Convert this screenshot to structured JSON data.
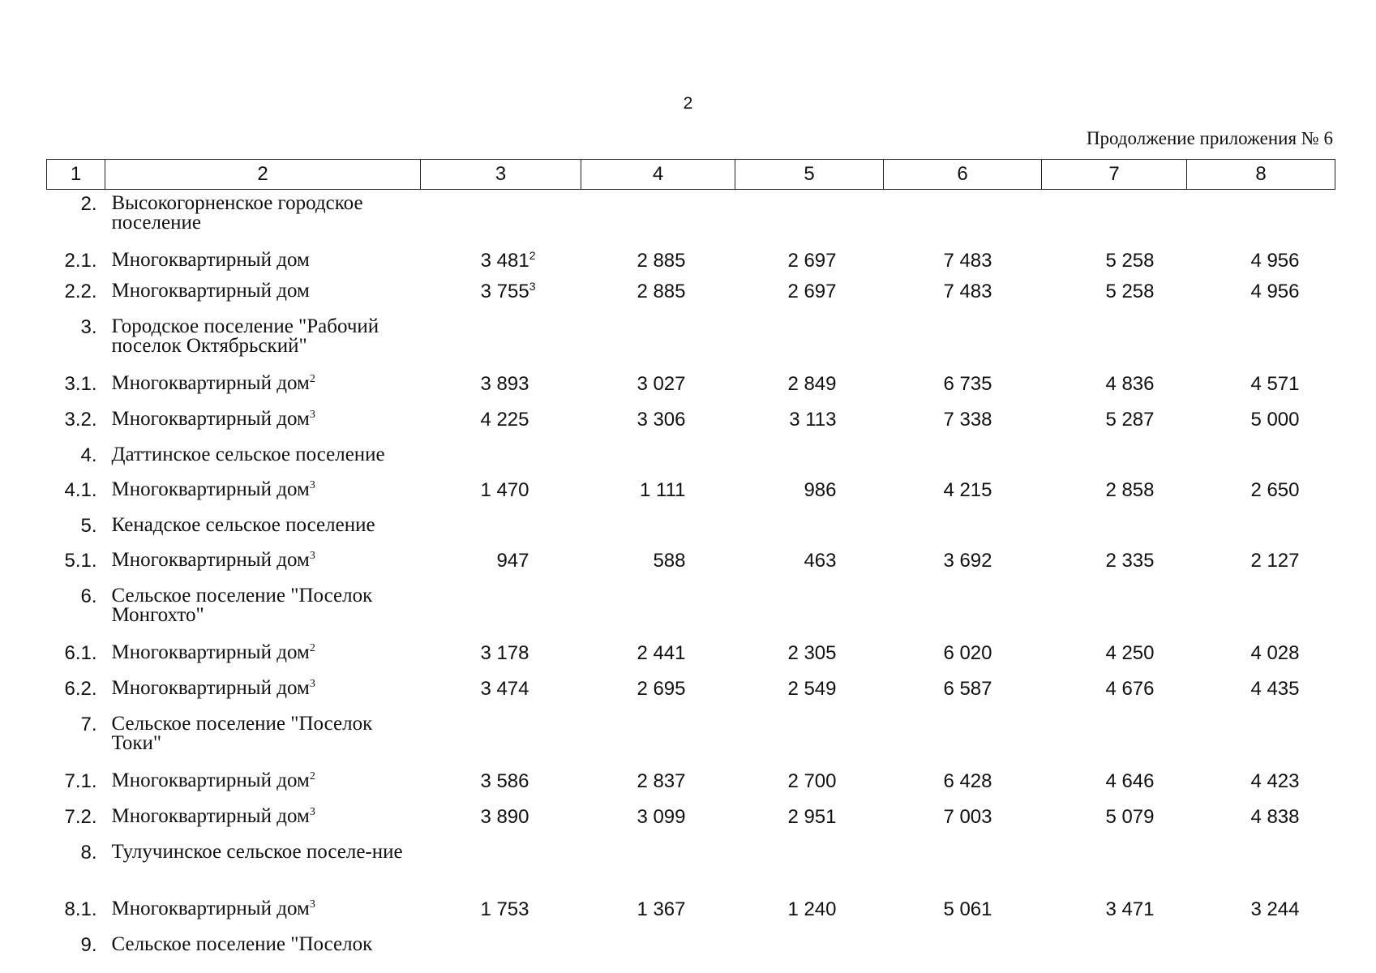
{
  "page_number": "2",
  "continuation_label": "Продолжение приложения № 6",
  "headers": [
    "1",
    "2",
    "3",
    "4",
    "5",
    "6",
    "7",
    "8"
  ],
  "rows": [
    {
      "num": "2.",
      "name": "Высокогорненское городское поселение",
      "name_sup": "",
      "values": [
        "",
        "",
        "",
        "",
        "",
        ""
      ],
      "v_sup": ""
    },
    {
      "num": "2.1.",
      "name": "Многоквартирный дом",
      "name_sup": "",
      "values": [
        "3 481",
        "2 885",
        "2 697",
        "7 483",
        "5 258",
        "4 956"
      ],
      "v_sup": "2"
    },
    {
      "num": "2.2.",
      "name": "Многоквартирный дом",
      "name_sup": "",
      "values": [
        "3 755",
        "2 885",
        "2 697",
        "7 483",
        "5 258",
        "4 956"
      ],
      "v_sup": "3"
    },
    {
      "num": "3.",
      "name": "Городское поселение \"Рабочий поселок Октябрьский\"",
      "name_sup": "",
      "values": [
        "",
        "",
        "",
        "",
        "",
        ""
      ],
      "v_sup": ""
    },
    {
      "num": "3.1.",
      "name": "Многоквартирный дом",
      "name_sup": "2",
      "values": [
        "3 893",
        "3 027",
        "2 849",
        "6 735",
        "4 836",
        "4 571"
      ],
      "v_sup": ""
    },
    {
      "num": "3.2.",
      "name": "Многоквартирный дом",
      "name_sup": "3",
      "values": [
        "4 225",
        "3 306",
        "3 113",
        "7 338",
        "5 287",
        "5 000"
      ],
      "v_sup": ""
    },
    {
      "num": "4.",
      "name": "Даттинское сельское поселение",
      "name_sup": "",
      "values": [
        "",
        "",
        "",
        "",
        "",
        ""
      ],
      "v_sup": ""
    },
    {
      "num": "4.1.",
      "name": "Многоквартирный дом",
      "name_sup": "3",
      "values": [
        "1 470",
        "1 111",
        "986",
        "4 215",
        "2 858",
        "2 650"
      ],
      "v_sup": ""
    },
    {
      "num": "5.",
      "name": "Кенадское сельское поселение",
      "name_sup": "",
      "values": [
        "",
        "",
        "",
        "",
        "",
        ""
      ],
      "v_sup": ""
    },
    {
      "num": "5.1.",
      "name": "Многоквартирный дом",
      "name_sup": "3",
      "values": [
        "947",
        "588",
        "463",
        "3 692",
        "2 335",
        "2 127"
      ],
      "v_sup": ""
    },
    {
      "num": "6.",
      "name": "Сельское поселение \"Поселок Монгохто\"",
      "name_sup": "",
      "values": [
        "",
        "",
        "",
        "",
        "",
        ""
      ],
      "v_sup": ""
    },
    {
      "num": "6.1.",
      "name": "Многоквартирный дом",
      "name_sup": "2",
      "values": [
        "3 178",
        "2 441",
        "2 305",
        "6 020",
        "4 250",
        "4 028"
      ],
      "v_sup": ""
    },
    {
      "num": "6.2.",
      "name": "Многоквартирный дом",
      "name_sup": "3",
      "values": [
        "3 474",
        "2 695",
        "2 549",
        "6 587",
        "4 676",
        "4 435"
      ],
      "v_sup": ""
    },
    {
      "num": "7.",
      "name": "Сельское поселение \"Поселок Токи\"",
      "name_sup": "",
      "values": [
        "",
        "",
        "",
        "",
        "",
        ""
      ],
      "v_sup": ""
    },
    {
      "num": "7.1.",
      "name": "Многоквартирный дом",
      "name_sup": "2",
      "values": [
        "3 586",
        "2 837",
        "2 700",
        "6 428",
        "4 646",
        "4 423"
      ],
      "v_sup": ""
    },
    {
      "num": "7.2.",
      "name": "Многоквартирный дом",
      "name_sup": "3",
      "values": [
        "3 890",
        "3 099",
        "2 951",
        "7 003",
        "5 079",
        "4 838"
      ],
      "v_sup": ""
    },
    {
      "num": "8.",
      "name": "Тулучинское сельское поселе-ние",
      "name_sup": "",
      "values": [
        "",
        "",
        "",
        "",
        "",
        ""
      ],
      "v_sup": ""
    },
    {
      "num": "8.1.",
      "name": "Многоквартирный дом",
      "name_sup": "3",
      "values": [
        "1 753",
        "1 367",
        "1 240",
        "5 061",
        "3 471",
        "3 244"
      ],
      "v_sup": ""
    },
    {
      "num": "9.",
      "name": "Сельское поселение \"Поселок",
      "name_sup": "",
      "values": [
        "",
        "",
        "",
        "",
        "",
        ""
      ],
      "v_sup": ""
    }
  ]
}
